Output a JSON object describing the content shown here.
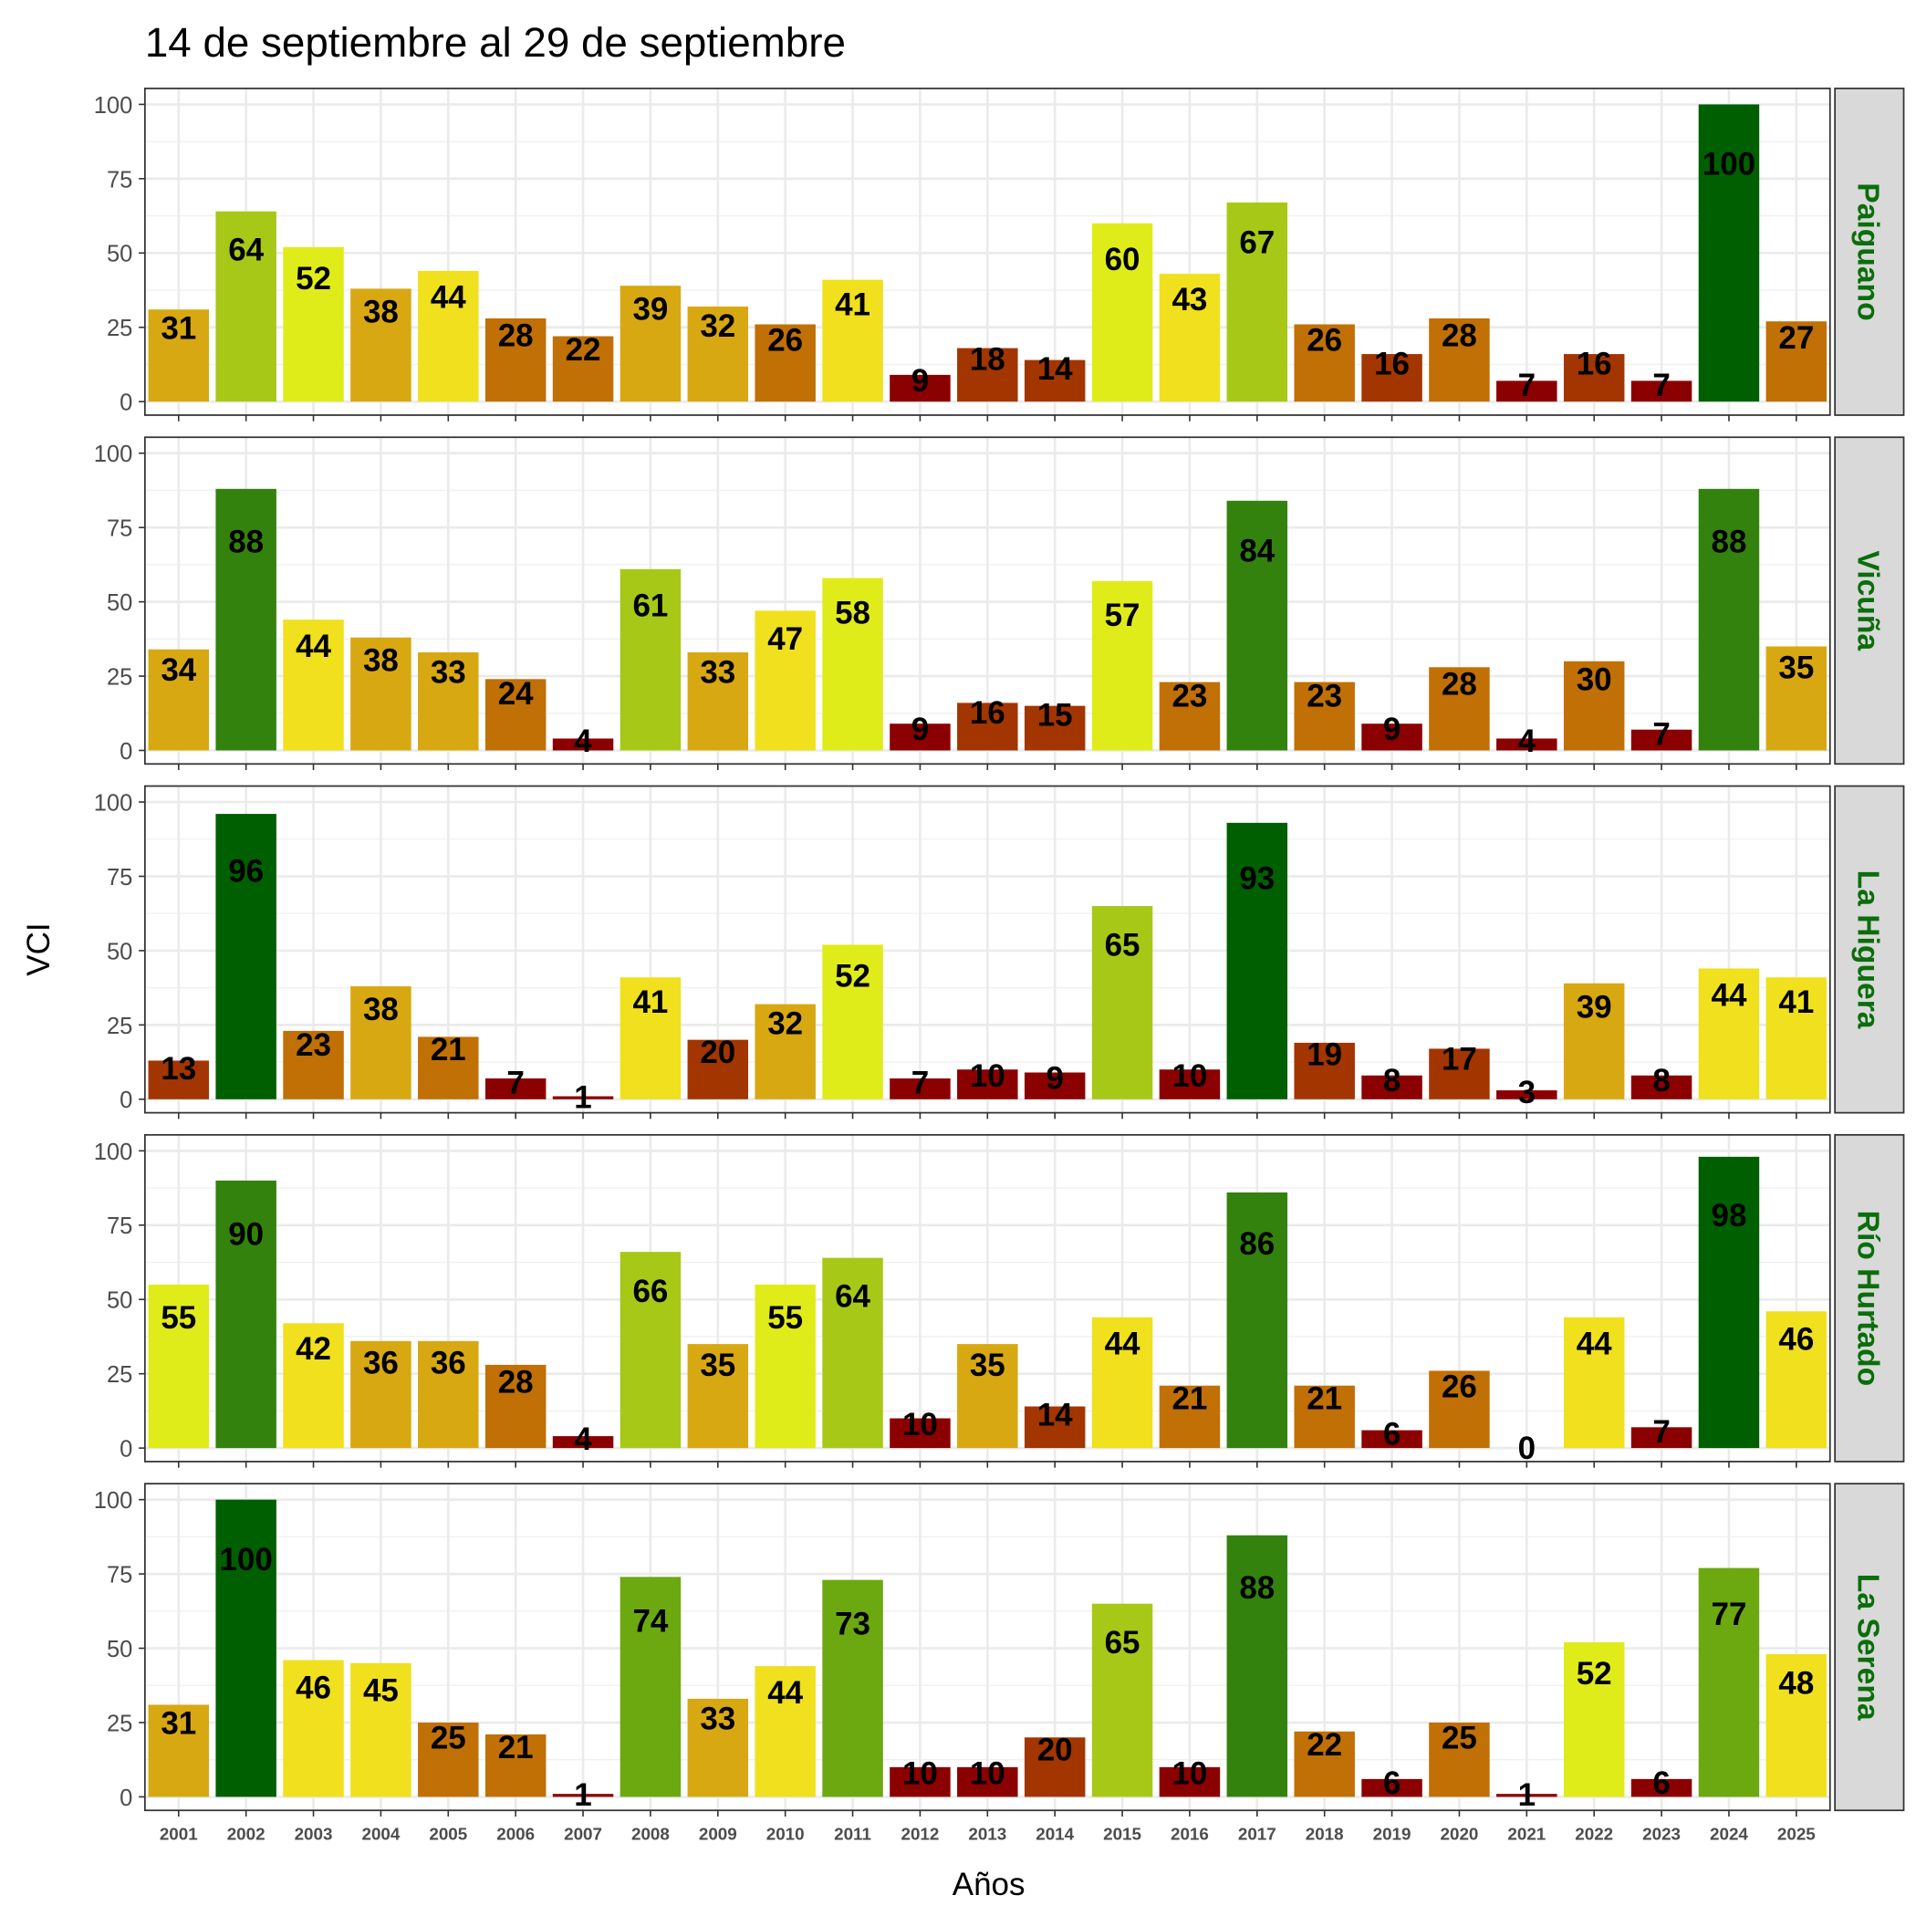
{
  "chart_data": {
    "type": "bar",
    "title": "14 de septiembre al 29 de septiembre",
    "xlabel": "Años",
    "ylabel": "VCI",
    "ylim": [
      0,
      100
    ],
    "yticks": [
      "0",
      "25",
      "50",
      "75",
      "100"
    ],
    "categories": [
      "2001",
      "2002",
      "2003",
      "2004",
      "2005",
      "2006",
      "2007",
      "2008",
      "2009",
      "2010",
      "2011",
      "2012",
      "2013",
      "2014",
      "2015",
      "2016",
      "2017",
      "2018",
      "2019",
      "2020",
      "2021",
      "2022",
      "2023",
      "2024",
      "2025"
    ],
    "color_scale": [
      "#8b0000",
      "#a33500",
      "#c07005",
      "#d8a812",
      "#f0e01e",
      "#e0ec1a",
      "#a8c818",
      "#6ca810",
      "#33820e",
      "#005f00"
    ],
    "strip_color": "#0a6e0a",
    "series": [
      {
        "name": "Paiguano",
        "values": [
          31,
          64,
          52,
          38,
          44,
          28,
          22,
          39,
          32,
          26,
          41,
          9,
          18,
          14,
          60,
          43,
          67,
          26,
          16,
          28,
          7,
          16,
          7,
          100,
          27
        ]
      },
      {
        "name": "Vicuña",
        "values": [
          34,
          88,
          44,
          38,
          33,
          24,
          4,
          61,
          33,
          47,
          58,
          9,
          16,
          15,
          57,
          23,
          84,
          23,
          9,
          28,
          4,
          30,
          7,
          88,
          35
        ]
      },
      {
        "name": "La Higuera",
        "values": [
          13,
          96,
          23,
          38,
          21,
          7,
          1,
          41,
          20,
          32,
          52,
          7,
          10,
          9,
          65,
          10,
          93,
          19,
          8,
          17,
          3,
          39,
          8,
          44,
          41
        ]
      },
      {
        "name": "Río Hurtado",
        "values": [
          55,
          90,
          42,
          36,
          36,
          28,
          4,
          66,
          35,
          55,
          64,
          10,
          35,
          14,
          44,
          21,
          86,
          21,
          6,
          26,
          0,
          44,
          7,
          98,
          46
        ]
      },
      {
        "name": "La Serena",
        "values": [
          31,
          100,
          46,
          45,
          25,
          21,
          1,
          74,
          33,
          44,
          73,
          10,
          10,
          20,
          65,
          10,
          88,
          22,
          6,
          25,
          1,
          52,
          6,
          77,
          48
        ]
      }
    ]
  }
}
